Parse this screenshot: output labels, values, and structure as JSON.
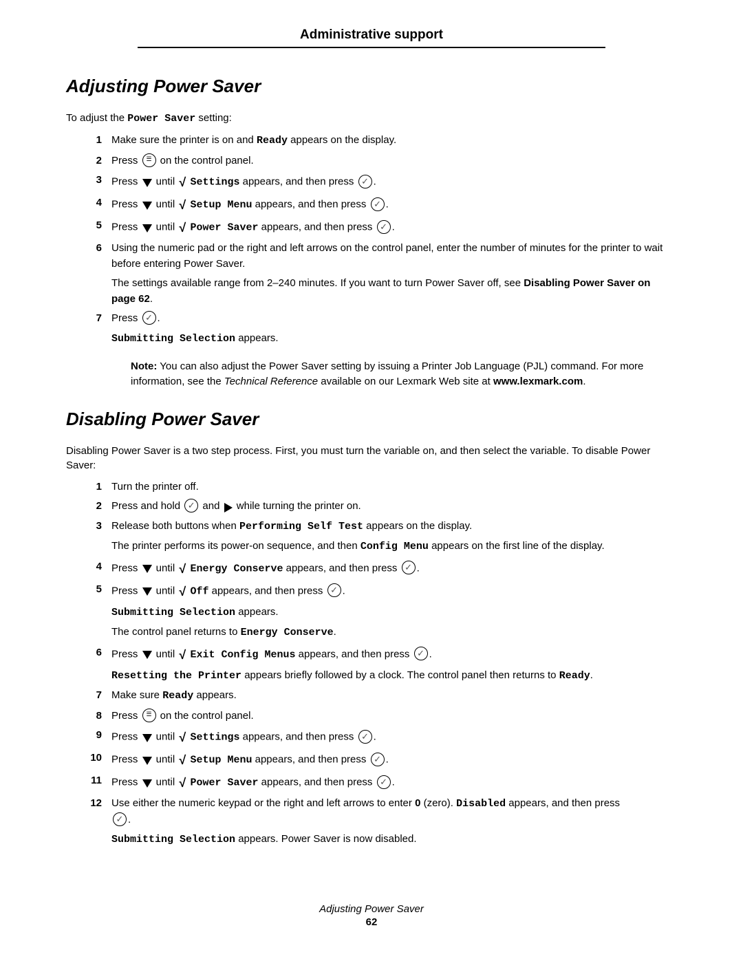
{
  "header": {
    "title": "Administrative support"
  },
  "section1": {
    "heading": "Adjusting Power Saver",
    "intro_pre": "To adjust the ",
    "intro_mono": "Power Saver",
    "intro_post": " setting:",
    "steps": {
      "s1_a": "Make sure the printer is on and ",
      "s1_mono": "Ready",
      "s1_b": " appears on the display.",
      "s2_a": "Press ",
      "s2_b": " on the control panel.",
      "s3_a": "Press ",
      "s3_b": " until ",
      "s3_mono": "Settings",
      "s3_c": " appears, and then press ",
      "s3_d": ".",
      "s4_a": "Press ",
      "s4_b": " until ",
      "s4_mono": "Setup Menu",
      "s4_c": " appears, and then press ",
      "s4_d": ".",
      "s5_a": "Press ",
      "s5_b": " until ",
      "s5_mono": "Power Saver",
      "s5_c": " appears, and then press ",
      "s5_d": ".",
      "s6_a": "Using the numeric pad or the right and left arrows on the control panel, enter the number of minutes for the printer to wait before entering Power Saver.",
      "s6_sub_a": "The settings available range from 2–240 minutes. If you want to turn Power Saver off, see ",
      "s6_sub_bold": "Disabling Power Saver on page 62",
      "s6_sub_b": ".",
      "s7_a": "Press ",
      "s7_b": ".",
      "s7_sub_mono": "Submitting Selection",
      "s7_sub_b": " appears."
    },
    "note": {
      "label": "Note:",
      "a": " You can also adjust the Power Saver setting by issuing a Printer Job Language (PJL) command. For more information, see the ",
      "ital": "Technical Reference",
      "b": " available on our Lexmark Web site at ",
      "link": "www.lexmark.com",
      "c": "."
    }
  },
  "section2": {
    "heading": "Disabling Power Saver",
    "intro": "Disabling Power Saver is a two step process. First, you must turn the variable on, and then select the variable. To disable Power Saver:",
    "steps": {
      "s1": "Turn the printer off.",
      "s2_a": "Press and hold ",
      "s2_b": " and ",
      "s2_c": " while turning the printer on.",
      "s3_a": "Release both buttons when ",
      "s3_mono": "Performing Self Test",
      "s3_b": " appears on the display.",
      "s3_sub_a": "The printer performs its power-on sequence, and then ",
      "s3_sub_mono": "Config Menu",
      "s3_sub_b": " appears on the first line of the display.",
      "s4_a": "Press ",
      "s4_b": " until ",
      "s4_mono": "Energy Conserve",
      "s4_c": " appears, and then press ",
      "s4_d": ".",
      "s5_a": "Press ",
      "s5_b": " until ",
      "s5_mono": "Off",
      "s5_c": " appears, and then press ",
      "s5_d": ".",
      "s5_sub1_mono": "Submitting Selection",
      "s5_sub1_b": " appears.",
      "s5_sub2_a": "The control panel returns to ",
      "s5_sub2_mono": "Energy Conserve",
      "s5_sub2_b": ".",
      "s6_a": "Press ",
      "s6_b": " until ",
      "s6_mono": "Exit Config Menus",
      "s6_c": " appears, and then press ",
      "s6_d": ".",
      "s6_sub_mono": "Resetting the Printer",
      "s6_sub_a": " appears briefly followed by a clock. The control panel then returns to ",
      "s6_sub_mono2": "Ready",
      "s6_sub_b": ".",
      "s7_a": "Make sure ",
      "s7_mono": "Ready",
      "s7_b": " appears.",
      "s8_a": "Press ",
      "s8_b": " on the control panel.",
      "s9_a": "Press ",
      "s9_b": " until ",
      "s9_mono": "Settings",
      "s9_c": " appears, and then press ",
      "s9_d": ".",
      "s10_a": "Press ",
      "s10_b": " until ",
      "s10_mono": "Setup Menu",
      "s10_c": " appears, and then press ",
      "s10_d": ".",
      "s11_a": "Press ",
      "s11_b": " until ",
      "s11_mono": "Power Saver",
      "s11_c": " appears, and then press ",
      "s11_d": ".",
      "s12_a": "Use either the numeric keypad or the right and left arrows to enter ",
      "s12_bold": "0",
      "s12_b": " (zero). ",
      "s12_mono": "Disabled",
      "s12_c": " appears, and then press ",
      "s12_d": ".",
      "s12_sub_mono": "Submitting Selection",
      "s12_sub_b": " appears. Power Saver is now disabled."
    }
  },
  "footer": {
    "title": "Adjusting Power Saver",
    "page": "62"
  }
}
